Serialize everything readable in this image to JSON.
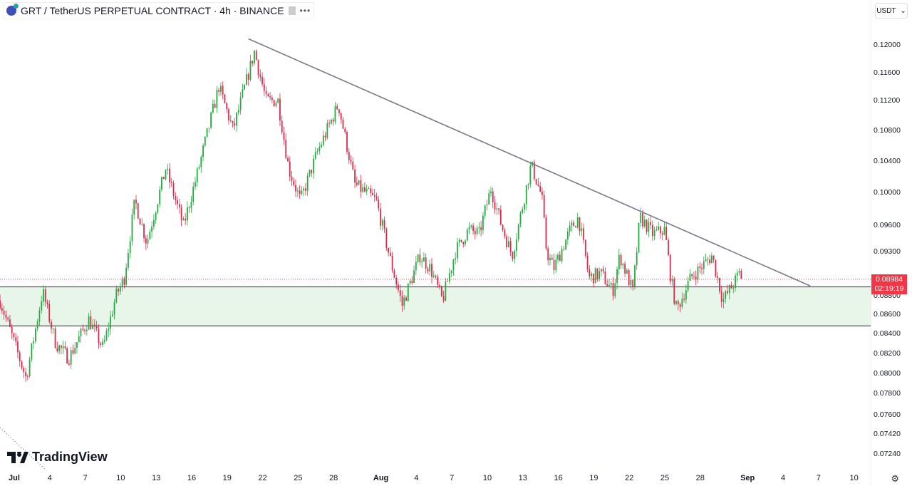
{
  "header": {
    "title": "GRT / TetherUS PERPETUAL CONTRACT · 4h · BINANCE",
    "more": "•••",
    "icon": "grt-coin-icon"
  },
  "currency": {
    "label": "USDT",
    "chevron": "⌄"
  },
  "last_price": {
    "price": "0.08984",
    "countdown": "02:19:19"
  },
  "logo": {
    "text": "TradingView"
  },
  "settings_icon": "⚙",
  "colors": {
    "up": "#26a69a",
    "up_candle": "#22ab3f",
    "down": "#e0294a",
    "zone": "#e8f5e9",
    "trend": "#787b86"
  },
  "price_axis": [
    "0.12000",
    "0.11600",
    "0.11200",
    "0.10800",
    "0.10400",
    "0.10000",
    "0.09600",
    "0.09300",
    "0.08800",
    "0.08600",
    "0.08400",
    "0.08200",
    "0.08000",
    "0.07800",
    "0.07600",
    "0.07420",
    "0.07240"
  ],
  "time_axis": [
    {
      "label": "Jul",
      "day": 0,
      "bold": true
    },
    {
      "label": "4",
      "day": 3
    },
    {
      "label": "7",
      "day": 6
    },
    {
      "label": "10",
      "day": 9
    },
    {
      "label": "13",
      "day": 12
    },
    {
      "label": "16",
      "day": 15
    },
    {
      "label": "19",
      "day": 18
    },
    {
      "label": "22",
      "day": 21
    },
    {
      "label": "25",
      "day": 24
    },
    {
      "label": "28",
      "day": 27
    },
    {
      "label": "Aug",
      "day": 31,
      "bold": true
    },
    {
      "label": "4",
      "day": 34
    },
    {
      "label": "7",
      "day": 37
    },
    {
      "label": "10",
      "day": 40
    },
    {
      "label": "13",
      "day": 43
    },
    {
      "label": "16",
      "day": 46
    },
    {
      "label": "19",
      "day": 49
    },
    {
      "label": "22",
      "day": 52
    },
    {
      "label": "25",
      "day": 55
    },
    {
      "label": "28",
      "day": 58
    },
    {
      "label": "Sep",
      "day": 62,
      "bold": true
    },
    {
      "label": "4",
      "day": 65
    },
    {
      "label": "7",
      "day": 68
    },
    {
      "label": "10",
      "day": 71
    }
  ],
  "chart_data": {
    "type": "candlestick",
    "interval": "4h",
    "scale": "log",
    "ylim": [
      0.0724,
      0.12
    ],
    "price_path": [
      [
        -1.2,
        0.0875
      ],
      [
        1.0,
        0.0795
      ],
      [
        2.4,
        0.0885
      ],
      [
        3.5,
        0.083
      ],
      [
        4.6,
        0.0815
      ],
      [
        6.3,
        0.0855
      ],
      [
        7.5,
        0.0825
      ],
      [
        8.6,
        0.088
      ],
      [
        9.3,
        0.09
      ],
      [
        10.2,
        0.099
      ],
      [
        11.2,
        0.094
      ],
      [
        12.8,
        0.103
      ],
      [
        14.3,
        0.096
      ],
      [
        15.5,
        0.1025
      ],
      [
        17.3,
        0.114
      ],
      [
        18.5,
        0.108
      ],
      [
        20.3,
        0.119
      ],
      [
        21.3,
        0.112
      ],
      [
        22.3,
        0.112
      ],
      [
        23.2,
        0.103
      ],
      [
        24.2,
        0.099
      ],
      [
        25.6,
        0.105
      ],
      [
        27.4,
        0.1115
      ],
      [
        28.8,
        0.101
      ],
      [
        30.6,
        0.099
      ],
      [
        31.8,
        0.092
      ],
      [
        32.8,
        0.087
      ],
      [
        34.3,
        0.0925
      ],
      [
        35.2,
        0.091
      ],
      [
        36.2,
        0.0875
      ],
      [
        37.3,
        0.093
      ],
      [
        38.4,
        0.0955
      ],
      [
        39.3,
        0.095
      ],
      [
        40.3,
        0.1005
      ],
      [
        41.2,
        0.096
      ],
      [
        42.1,
        0.0925
      ],
      [
        43.7,
        0.1035
      ],
      [
        44.6,
        0.0995
      ],
      [
        45.0,
        0.093
      ],
      [
        45.6,
        0.091
      ],
      [
        47.0,
        0.0955
      ],
      [
        47.7,
        0.097
      ],
      [
        48.6,
        0.09
      ],
      [
        49.6,
        0.0905
      ],
      [
        50.6,
        0.0885
      ],
      [
        51.2,
        0.0925
      ],
      [
        52.3,
        0.0885
      ],
      [
        52.9,
        0.097
      ],
      [
        54.0,
        0.095
      ],
      [
        55.0,
        0.0955
      ],
      [
        55.5,
        0.09
      ],
      [
        56.0,
        0.0865
      ],
      [
        57.2,
        0.09
      ],
      [
        59.0,
        0.0925
      ],
      [
        59.9,
        0.0875
      ],
      [
        60.9,
        0.0895
      ],
      [
        61.3,
        0.0905
      ],
      [
        61.6,
        0.08984
      ]
    ],
    "support_zone": {
      "top": 0.089,
      "bottom": 0.0848
    },
    "trendline": {
      "start": {
        "day": 19.8,
        "price": 0.1209
      },
      "end": {
        "day": 67.3,
        "price": 0.0891
      }
    }
  }
}
